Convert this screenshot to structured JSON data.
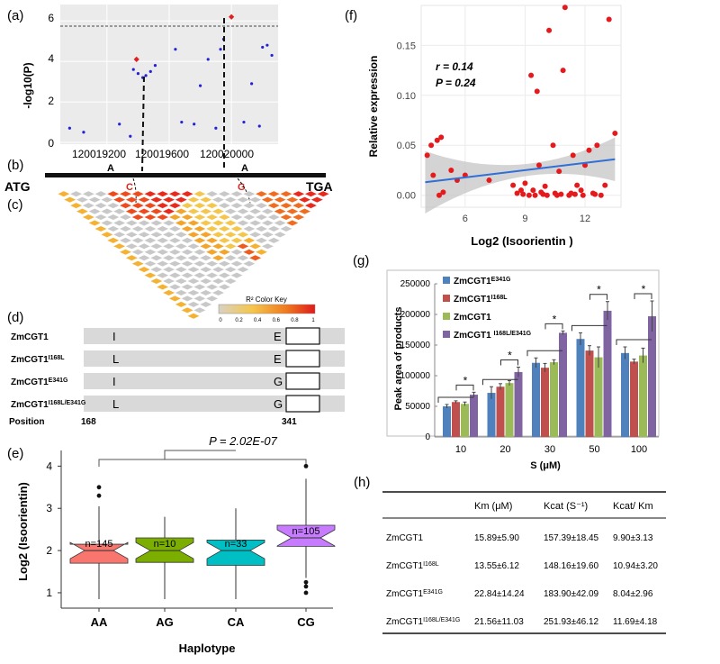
{
  "panels": {
    "a": {
      "label": "(a)",
      "ylabel": "-log10(P)",
      "yticks": [
        "0",
        "2",
        "4",
        "6"
      ],
      "xticks": [
        "120019200",
        "120019600",
        "120020000"
      ]
    },
    "b": {
      "label": "(b)",
      "start": "ATG",
      "end": "TGA",
      "allele1_top": "A",
      "allele1_bottom": "C",
      "allele2_top": "A",
      "allele2_bottom": "G"
    },
    "c": {
      "label": "(c)",
      "legend_title": "R² Color Key",
      "legend_ticks": [
        "0",
        "0.2",
        "0.4",
        "0.6",
        "0.8",
        "1"
      ]
    },
    "d": {
      "label": "(d)",
      "rows": [
        {
          "name": "ZmCGT1",
          "sup": "",
          "aa1": "I",
          "aa2": "E"
        },
        {
          "name": "ZmCGT1",
          "sup": "I168L",
          "aa1": "L",
          "aa2": "E"
        },
        {
          "name": "ZmCGT1",
          "sup": "E341G",
          "aa1": "I",
          "aa2": "G"
        },
        {
          "name": "ZmCGT1",
          "sup": "I168L/E341G",
          "aa1": "L",
          "aa2": "G"
        }
      ],
      "position_label": "Position",
      "pos1": "168",
      "pos2": "341"
    },
    "e": {
      "label": "(e)",
      "pvalue": "P = 2.02E-07",
      "ylabel": "Log2 (Isoorientin)",
      "xlabel": "Haplotype",
      "yticks": [
        "1",
        "2",
        "3",
        "4"
      ],
      "boxes": [
        {
          "name": "AA",
          "n": "n=145",
          "color": "#f8766d"
        },
        {
          "name": "AG",
          "n": "n=10",
          "color": "#7cae00"
        },
        {
          "name": "CA",
          "n": "n=33",
          "color": "#00bfc4"
        },
        {
          "name": "CG",
          "n": "n=105",
          "color": "#c77cff"
        }
      ]
    },
    "f": {
      "label": "(f)",
      "ylabel": "Relative expression",
      "xlabel": "Log2 (Isoorientin )",
      "r_text": "r = 0.14",
      "p_text": "P = 0.24",
      "yticks": [
        "0.00",
        "0.05",
        "0.10",
        "0.15"
      ],
      "xticks": [
        "6",
        "9",
        "12"
      ]
    },
    "g": {
      "label": "(g)",
      "ylabel": "Peak area of products",
      "xlabel": "S (μM)",
      "yticks": [
        "0",
        "50000",
        "100000",
        "150000",
        "200000",
        "250000"
      ]
    },
    "h": {
      "label": "(h)",
      "headers": [
        "",
        "Km (μM)",
        "Kcat (S⁻¹)",
        "Kcat/ Km"
      ],
      "rows": [
        {
          "name": "ZmCGT1",
          "sup": "",
          "km": "15.89±5.90",
          "kcat": "157.39±18.45",
          "ratio": "9.90±3.13"
        },
        {
          "name": "ZmCGT1",
          "sup": "I168L",
          "km": "13.55±6.12",
          "kcat": "148.16±19.60",
          "ratio": "10.94±3.20"
        },
        {
          "name": "ZmCGT1",
          "sup": "E341G",
          "km": "22.84±14.24",
          "kcat": "183.90±42.09",
          "ratio": "8.04±2.96"
        },
        {
          "name": "ZmCGT1",
          "sup": "I168L/E341G",
          "km": "21.56±11.03",
          "kcat": "251.93±46.12",
          "ratio": "11.69±4.18"
        }
      ]
    }
  },
  "chart_data": [
    {
      "type": "scatter",
      "panel": "a",
      "ylabel": "-log10(P)",
      "ylim": [
        0,
        6.5
      ],
      "xlim": [
        120018900,
        120020300
      ],
      "threshold": 5.7,
      "points": [
        {
          "x": 120018960,
          "y": 0.7
        },
        {
          "x": 120019050,
          "y": 0.5
        },
        {
          "x": 120019280,
          "y": 0.9
        },
        {
          "x": 120019350,
          "y": 0.3
        },
        {
          "x": 120019370,
          "y": 3.6
        },
        {
          "x": 120019400,
          "y": 3.4
        },
        {
          "x": 120019430,
          "y": 3.2
        },
        {
          "x": 120019450,
          "y": 3.3
        },
        {
          "x": 120019480,
          "y": 3.5
        },
        {
          "x": 120019510,
          "y": 3.8
        },
        {
          "x": 120019640,
          "y": 4.6
        },
        {
          "x": 120019680,
          "y": 1.0
        },
        {
          "x": 120019760,
          "y": 0.9
        },
        {
          "x": 120019800,
          "y": 2.8
        },
        {
          "x": 120019850,
          "y": 4.1
        },
        {
          "x": 120019900,
          "y": 0.7
        },
        {
          "x": 120019930,
          "y": 4.6
        },
        {
          "x": 120019950,
          "y": 5.1
        },
        {
          "x": 120020080,
          "y": 1.0
        },
        {
          "x": 120020130,
          "y": 2.9
        },
        {
          "x": 120020180,
          "y": 0.8
        },
        {
          "x": 120020200,
          "y": 4.7
        },
        {
          "x": 120020230,
          "y": 4.8
        },
        {
          "x": 120020260,
          "y": 4.3
        }
      ],
      "highlight": [
        {
          "x": 120019390,
          "y": 4.1
        },
        {
          "x": 120020000,
          "y": 6.2
        }
      ],
      "grid": true
    },
    {
      "type": "heatmap",
      "panel": "c",
      "description": "LD triangle",
      "colors": [
        "#c8c8c8",
        "#f5c64c",
        "#f19c2a",
        "#ef6b1e",
        "#e8291b"
      ]
    },
    {
      "type": "box",
      "panel": "e",
      "ylabel": "Log2 (Isoorientin)",
      "xlabel": "Haplotype",
      "ylim": [
        0.7,
        4.2
      ],
      "categories": [
        "AA",
        "AG",
        "CA",
        "CG"
      ],
      "stats": [
        {
          "min": 0.85,
          "q1": 1.7,
          "median": 2.0,
          "q3": 2.15,
          "max": 3.05,
          "outliers": [
            3.3,
            3.5
          ]
        },
        {
          "min": 0.85,
          "q1": 1.72,
          "median": 2.0,
          "q3": 2.3,
          "max": 2.8,
          "outliers": []
        },
        {
          "min": 0.85,
          "q1": 1.65,
          "median": 2.0,
          "q3": 2.25,
          "max": 3.0,
          "outliers": []
        },
        {
          "min": 1.35,
          "q1": 2.1,
          "median": 2.3,
          "q3": 2.6,
          "max": 3.7,
          "outliers": [
            4.0,
            1.15,
            1.25,
            1.0
          ]
        }
      ]
    },
    {
      "type": "scatter",
      "panel": "f",
      "xlabel": "Log2 (Isoorientin )",
      "ylabel": "Relative expression",
      "xlim": [
        3.8,
        13.8
      ],
      "ylim": [
        -0.012,
        0.19
      ],
      "regression": {
        "x0": 4.0,
        "y0": 0.013,
        "x1": 13.5,
        "y1": 0.036
      },
      "points": [
        {
          "x": 4.1,
          "y": 0.04
        },
        {
          "x": 4.3,
          "y": 0.05
        },
        {
          "x": 4.4,
          "y": 0.02
        },
        {
          "x": 4.6,
          "y": 0.055
        },
        {
          "x": 4.8,
          "y": 0.058
        },
        {
          "x": 4.7,
          "y": 0.0
        },
        {
          "x": 4.9,
          "y": 0.003
        },
        {
          "x": 5.3,
          "y": 0.025
        },
        {
          "x": 5.6,
          "y": 0.015
        },
        {
          "x": 6.0,
          "y": 0.02
        },
        {
          "x": 7.2,
          "y": 0.015
        },
        {
          "x": 8.4,
          "y": 0.01
        },
        {
          "x": 8.6,
          "y": 0.002
        },
        {
          "x": 8.8,
          "y": 0.005
        },
        {
          "x": 9.0,
          "y": 0.012
        },
        {
          "x": 9.2,
          "y": 0.0
        },
        {
          "x": 9.3,
          "y": 0.12
        },
        {
          "x": 9.4,
          "y": 0.005
        },
        {
          "x": 9.6,
          "y": 0.104
        },
        {
          "x": 9.7,
          "y": 0.03
        },
        {
          "x": 9.8,
          "y": 0.003
        },
        {
          "x": 10.0,
          "y": 0.009
        },
        {
          "x": 10.2,
          "y": 0.165
        },
        {
          "x": 10.4,
          "y": 0.05
        },
        {
          "x": 10.5,
          "y": 0.002
        },
        {
          "x": 10.7,
          "y": 0.024
        },
        {
          "x": 10.9,
          "y": 0.125
        },
        {
          "x": 11.0,
          "y": 0.188
        },
        {
          "x": 11.2,
          "y": 0.0
        },
        {
          "x": 11.4,
          "y": 0.04
        },
        {
          "x": 11.6,
          "y": 0.01
        },
        {
          "x": 11.8,
          "y": 0.005
        },
        {
          "x": 12.0,
          "y": 0.03
        },
        {
          "x": 12.2,
          "y": 0.045
        },
        {
          "x": 12.4,
          "y": 0.002
        },
        {
          "x": 12.6,
          "y": 0.05
        },
        {
          "x": 12.8,
          "y": 0.0
        },
        {
          "x": 13.0,
          "y": 0.01
        },
        {
          "x": 13.2,
          "y": 0.176
        },
        {
          "x": 13.5,
          "y": 0.062
        },
        {
          "x": 8.9,
          "y": 0.001
        },
        {
          "x": 9.5,
          "y": 0.0
        },
        {
          "x": 10.1,
          "y": 0.0
        },
        {
          "x": 10.8,
          "y": 0.001
        },
        {
          "x": 11.3,
          "y": 0.002
        },
        {
          "x": 11.9,
          "y": 0.0
        },
        {
          "x": 12.5,
          "y": 0.001
        },
        {
          "x": 9.9,
          "y": 0.001
        },
        {
          "x": 10.6,
          "y": 0.0
        },
        {
          "x": 11.5,
          "y": 0.001
        }
      ]
    },
    {
      "type": "bar",
      "panel": "g",
      "ylabel": "Peak area of products",
      "xlabel": "S (μM)",
      "categories": [
        "10",
        "20",
        "30",
        "50",
        "100"
      ],
      "ylim": [
        0,
        250000
      ],
      "series": [
        {
          "name": "ZmCGT1E341G",
          "label": "ZmCGT1",
          "sup": "E341G",
          "color": "#4f81bd",
          "values": [
            50000,
            72000,
            121000,
            160000,
            137000
          ],
          "errors": [
            3000,
            10000,
            8000,
            10000,
            10000
          ]
        },
        {
          "name": "ZmCGT1I168L",
          "label": "ZmCGT1",
          "sup": "I168L",
          "color": "#c0504d",
          "values": [
            57000,
            82000,
            113000,
            141000,
            123000
          ],
          "errors": [
            2000,
            5000,
            7000,
            8000,
            4000
          ]
        },
        {
          "name": "ZmCGT1",
          "label": "ZmCGT1",
          "sup": "",
          "color": "#9bbb59",
          "values": [
            54000,
            88000,
            122000,
            130000,
            133000
          ],
          "errors": [
            3000,
            4000,
            4000,
            17000,
            12000
          ]
        },
        {
          "name": "ZmCGT1 I168L/E341G",
          "label": "ZmCGT1 ",
          "sup": "I168L/E341G",
          "color": "#8064a2",
          "values": [
            69000,
            106000,
            170000,
            206000,
            197000
          ],
          "errors": [
            4000,
            8000,
            3000,
            15000,
            25000
          ]
        }
      ],
      "significance": [
        "*",
        "*",
        "*",
        "*",
        "*"
      ]
    }
  ]
}
